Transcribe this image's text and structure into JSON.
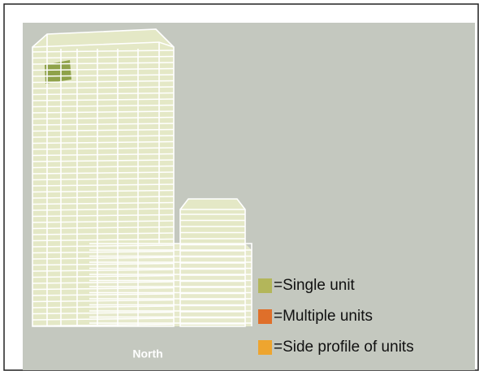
{
  "diagram": {
    "compass_label": "North",
    "legend": [
      {
        "label": "=Single unit",
        "color": "#b3b65a"
      },
      {
        "label": "=Multiple units",
        "color": "#df6f2a"
      },
      {
        "label": "=Side profile of units",
        "color": "#eea52f"
      }
    ]
  }
}
